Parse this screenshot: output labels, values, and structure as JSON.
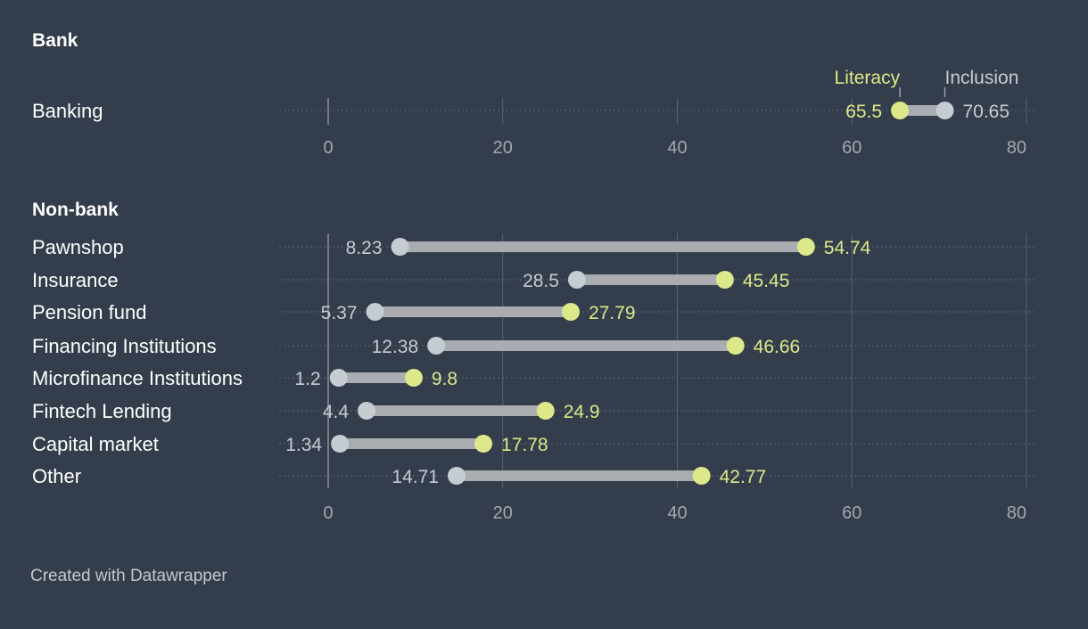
{
  "chart_data": [
    {
      "type": "dumbbell",
      "title": "Bank",
      "xlim": [
        0,
        80
      ],
      "xticks": [
        0,
        20,
        40,
        60,
        80
      ],
      "legend": [
        "Literacy",
        "Inclusion"
      ],
      "categories": [
        "Banking"
      ],
      "series": [
        {
          "name": "Literacy",
          "values": [
            65.5
          ]
        },
        {
          "name": "Inclusion",
          "values": [
            70.65
          ]
        }
      ]
    },
    {
      "type": "dumbbell",
      "title": "Non-bank",
      "xlim": [
        0,
        80
      ],
      "xticks": [
        0,
        20,
        40,
        60,
        80
      ],
      "categories": [
        "Pawnshop",
        "Insurance",
        "Pension fund",
        "Financing Institutions",
        "Microfinance Institutions",
        "Fintech Lending",
        "Capital market",
        "Other"
      ],
      "series": [
        {
          "name": "Literacy",
          "values": [
            54.74,
            45.45,
            27.79,
            46.66,
            9.8,
            24.9,
            17.78,
            42.77
          ]
        },
        {
          "name": "Inclusion",
          "values": [
            8.23,
            28.5,
            5.37,
            12.38,
            1.2,
            4.4,
            1.34,
            14.71
          ]
        }
      ]
    }
  ],
  "colors": {
    "background": "#333d4b",
    "literacy": "#dde88a",
    "inclusion": "#c5cdd3",
    "bar": "#a9acb0",
    "grid": "#59626e",
    "tick_label": "#a2a8b0",
    "category_label": "#ffffff"
  },
  "credit": "Created with Datawrapper"
}
